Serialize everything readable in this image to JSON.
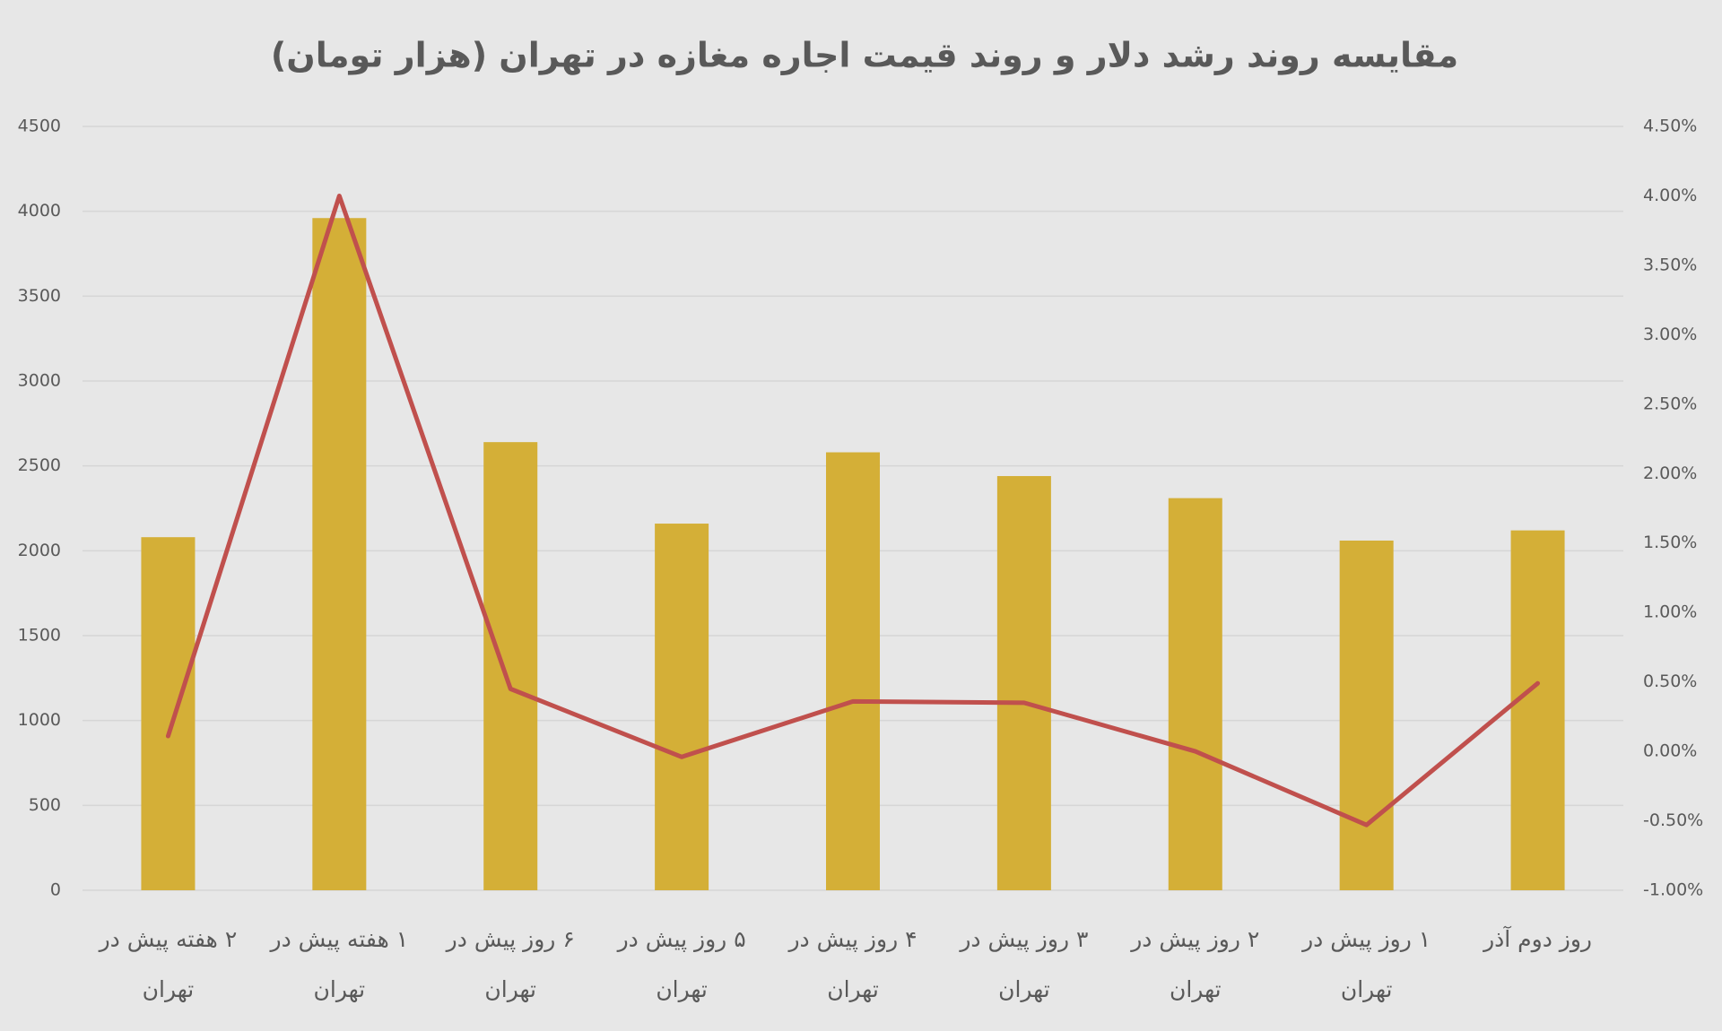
{
  "chart_data": {
    "type": "combo",
    "title": "مقایسه روند رشد دلار و روند قیمت اجاره مغازه در تهران (هزار تومان)",
    "categories": [
      "۲ هفته پیش در تهران",
      "۱ هفته پیش در تهران",
      "۶ روز پیش در تهران",
      "۵ روز پیش در تهران",
      "۴ روز پیش در تهران",
      "۳ روز پیش در تهران",
      "۲ روز پیش در تهران",
      "۱ روز پیش در تهران",
      "روز دوم آذر"
    ],
    "series": [
      {
        "type": "bar",
        "color": "#d4af37",
        "values": [
          2080,
          3960,
          2640,
          2160,
          2580,
          2440,
          2310,
          2060,
          2120
        ]
      },
      {
        "type": "line",
        "color": "#c0504d",
        "axis": "y2",
        "values": [
          0.11,
          4.0,
          0.45,
          -0.04,
          0.36,
          0.35,
          0.0,
          -0.53,
          0.49
        ]
      }
    ],
    "ylim": [
      0,
      4500
    ],
    "yticks": [
      0,
      500,
      1000,
      1500,
      2000,
      2500,
      3000,
      3500,
      4000,
      4500
    ],
    "y2lim": [
      -1,
      4.5
    ],
    "y2ticks": [
      {
        "value": -1,
        "label": "-1.00%"
      },
      {
        "value": -0.5,
        "label": "-0.50%"
      },
      {
        "value": 0,
        "label": "0.00%"
      },
      {
        "value": 0.5,
        "label": "0.50%"
      },
      {
        "value": 1,
        "label": "1.00%"
      },
      {
        "value": 1.5,
        "label": "1.50%"
      },
      {
        "value": 2,
        "label": "2.00%"
      },
      {
        "value": 2.5,
        "label": "2.50%"
      },
      {
        "value": 3,
        "label": "3.00%"
      },
      {
        "value": 3.5,
        "label": "3.50%"
      },
      {
        "value": 4,
        "label": "4.00%"
      },
      {
        "value": 4.5,
        "label": "4.50%"
      }
    ],
    "grid": true
  }
}
